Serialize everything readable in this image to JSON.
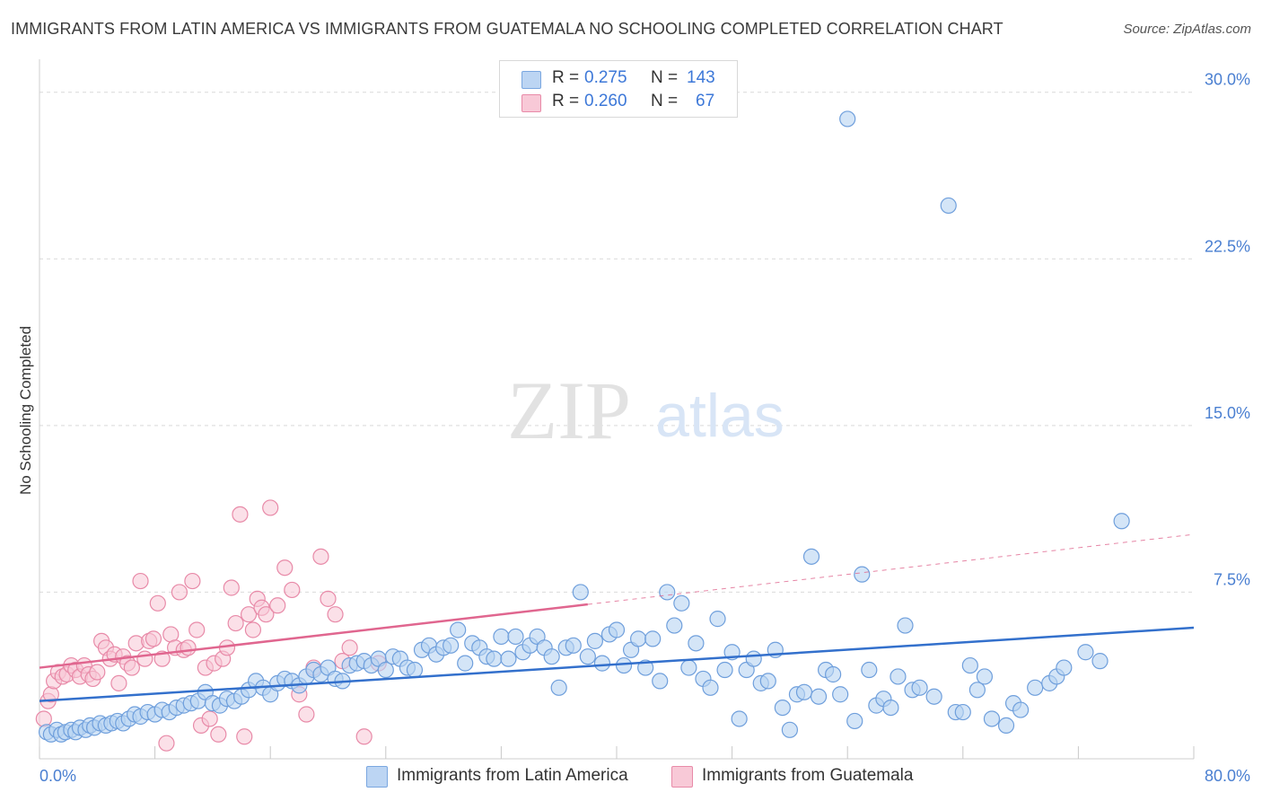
{
  "title": "IMMIGRANTS FROM LATIN AMERICA VS IMMIGRANTS FROM GUATEMALA NO SCHOOLING COMPLETED CORRELATION CHART",
  "source": "Source: ZipAtlas.com",
  "watermark": {
    "zip": "ZIP",
    "atlas": "atlas"
  },
  "legend": {
    "rows": [
      {
        "r_label": "R =",
        "r_value": "0.275",
        "n_label": "N =",
        "n_value": "143",
        "color": "#a9c8f0"
      },
      {
        "r_label": "R =",
        "r_value": "0.260",
        "n_label": "N =",
        "n_value": "67",
        "color": "#f4b6c8"
      }
    ]
  },
  "bottom_legend": [
    {
      "label": "Immigrants from Latin America",
      "color": "#a9c8f0"
    },
    {
      "label": "Immigrants from Guatemala",
      "color": "#f4b6c8"
    }
  ],
  "colors": {
    "blue_fill": "#b8d3f2",
    "blue_stroke": "#6f9fdc",
    "blue_line": "#3370cc",
    "pink_fill": "#f7c6d5",
    "pink_stroke": "#e88aa8",
    "pink_line": "#e0668f",
    "grid": "#d9d9d9",
    "tick_text": "#4a7fd1"
  },
  "chart_data": {
    "type": "scatter",
    "title": "IMMIGRANTS FROM LATIN AMERICA VS IMMIGRANTS FROM GUATEMALA NO SCHOOLING COMPLETED CORRELATION CHART",
    "xlabel": "",
    "ylabel": "No Schooling Completed",
    "xlim": [
      0,
      80
    ],
    "ylim": [
      0,
      31
    ],
    "x_tick_labels": [
      "0.0%",
      "80.0%"
    ],
    "y_ticks": [
      7.5,
      15.0,
      22.5,
      30.0
    ],
    "y_tick_labels": [
      "7.5%",
      "15.0%",
      "22.5%",
      "30.0%"
    ],
    "grid": true,
    "legend_position": "top-center",
    "series": [
      {
        "name": "Immigrants from Latin America",
        "r": 0.275,
        "n": 143,
        "trend": {
          "x0": 0,
          "y0": 2.6,
          "x1": 80,
          "y1": 5.9,
          "dashed_from_x": null
        },
        "points": [
          [
            0.5,
            1.2
          ],
          [
            0.8,
            1.1
          ],
          [
            1.2,
            1.3
          ],
          [
            1.5,
            1.1
          ],
          [
            1.8,
            1.2
          ],
          [
            2.2,
            1.3
          ],
          [
            2.5,
            1.2
          ],
          [
            2.8,
            1.4
          ],
          [
            3.2,
            1.3
          ],
          [
            3.5,
            1.5
          ],
          [
            3.8,
            1.4
          ],
          [
            4.2,
            1.6
          ],
          [
            4.6,
            1.5
          ],
          [
            5.0,
            1.6
          ],
          [
            5.4,
            1.7
          ],
          [
            5.8,
            1.6
          ],
          [
            6.2,
            1.8
          ],
          [
            6.6,
            2.0
          ],
          [
            7.0,
            1.9
          ],
          [
            7.5,
            2.1
          ],
          [
            8.0,
            2.0
          ],
          [
            8.5,
            2.2
          ],
          [
            9.0,
            2.1
          ],
          [
            9.5,
            2.3
          ],
          [
            10.0,
            2.4
          ],
          [
            10.5,
            2.5
          ],
          [
            11.0,
            2.6
          ],
          [
            11.5,
            3.0
          ],
          [
            12.0,
            2.5
          ],
          [
            12.5,
            2.4
          ],
          [
            13.0,
            2.7
          ],
          [
            13.5,
            2.6
          ],
          [
            14.0,
            2.8
          ],
          [
            14.5,
            3.1
          ],
          [
            15.0,
            3.5
          ],
          [
            15.5,
            3.2
          ],
          [
            16.0,
            2.9
          ],
          [
            16.5,
            3.4
          ],
          [
            17.0,
            3.6
          ],
          [
            17.5,
            3.5
          ],
          [
            18.0,
            3.3
          ],
          [
            18.5,
            3.7
          ],
          [
            19.0,
            4.0
          ],
          [
            19.5,
            3.8
          ],
          [
            20.0,
            4.1
          ],
          [
            20.5,
            3.6
          ],
          [
            21.0,
            3.5
          ],
          [
            21.5,
            4.2
          ],
          [
            22.0,
            4.3
          ],
          [
            22.5,
            4.4
          ],
          [
            23.0,
            4.2
          ],
          [
            23.5,
            4.5
          ],
          [
            24.0,
            4.0
          ],
          [
            24.5,
            4.6
          ],
          [
            25.0,
            4.5
          ],
          [
            25.5,
            4.1
          ],
          [
            26.0,
            4.0
          ],
          [
            26.5,
            4.9
          ],
          [
            27.0,
            5.1
          ],
          [
            27.5,
            4.7
          ],
          [
            28.0,
            5.0
          ],
          [
            28.5,
            5.1
          ],
          [
            29.0,
            5.8
          ],
          [
            29.5,
            4.3
          ],
          [
            30.0,
            5.2
          ],
          [
            30.5,
            5.0
          ],
          [
            31.0,
            4.6
          ],
          [
            31.5,
            4.5
          ],
          [
            32.0,
            5.5
          ],
          [
            32.5,
            4.5
          ],
          [
            33.0,
            5.5
          ],
          [
            33.5,
            4.8
          ],
          [
            34.0,
            5.1
          ],
          [
            34.5,
            5.5
          ],
          [
            35.0,
            5.0
          ],
          [
            35.5,
            4.6
          ],
          [
            36.0,
            3.2
          ],
          [
            36.5,
            5.0
          ],
          [
            37.0,
            5.1
          ],
          [
            37.5,
            7.5
          ],
          [
            38.0,
            4.6
          ],
          [
            38.5,
            5.3
          ],
          [
            39.0,
            4.3
          ],
          [
            39.5,
            5.6
          ],
          [
            40.0,
            5.8
          ],
          [
            40.5,
            4.2
          ],
          [
            41.0,
            4.9
          ],
          [
            41.5,
            5.4
          ],
          [
            42.0,
            4.1
          ],
          [
            42.5,
            5.4
          ],
          [
            43.0,
            3.5
          ],
          [
            43.5,
            7.5
          ],
          [
            44.0,
            6.0
          ],
          [
            44.5,
            7.0
          ],
          [
            45.0,
            4.1
          ],
          [
            45.5,
            5.2
          ],
          [
            46.0,
            3.6
          ],
          [
            46.5,
            3.2
          ],
          [
            47.0,
            6.3
          ],
          [
            47.5,
            4.0
          ],
          [
            48.0,
            4.8
          ],
          [
            48.5,
            1.8
          ],
          [
            49.0,
            4.0
          ],
          [
            49.5,
            4.5
          ],
          [
            50.0,
            3.4
          ],
          [
            50.5,
            3.5
          ],
          [
            51.0,
            4.9
          ],
          [
            51.5,
            2.3
          ],
          [
            52.0,
            1.3
          ],
          [
            52.5,
            2.9
          ],
          [
            53.0,
            3.0
          ],
          [
            53.5,
            9.1
          ],
          [
            54.0,
            2.8
          ],
          [
            54.5,
            4.0
          ],
          [
            55.0,
            3.8
          ],
          [
            55.5,
            2.9
          ],
          [
            56.0,
            28.8
          ],
          [
            56.5,
            1.7
          ],
          [
            57.0,
            8.3
          ],
          [
            57.5,
            4.0
          ],
          [
            58.0,
            2.4
          ],
          [
            58.5,
            2.7
          ],
          [
            59.0,
            2.3
          ],
          [
            59.5,
            3.7
          ],
          [
            60.0,
            6.0
          ],
          [
            60.5,
            3.1
          ],
          [
            61.0,
            3.2
          ],
          [
            62.0,
            2.8
          ],
          [
            63.0,
            24.9
          ],
          [
            63.5,
            2.1
          ],
          [
            64.0,
            2.1
          ],
          [
            64.5,
            4.2
          ],
          [
            65.0,
            3.1
          ],
          [
            65.5,
            3.7
          ],
          [
            66.0,
            1.8
          ],
          [
            67.0,
            1.5
          ],
          [
            67.5,
            2.5
          ],
          [
            68.0,
            2.2
          ],
          [
            69.0,
            3.2
          ],
          [
            70.0,
            3.4
          ],
          [
            70.5,
            3.7
          ],
          [
            71.0,
            4.1
          ],
          [
            72.5,
            4.8
          ],
          [
            73.5,
            4.4
          ],
          [
            75.0,
            10.7
          ]
        ]
      },
      {
        "name": "Immigrants from Guatemala",
        "r": 0.26,
        "n": 67,
        "trend": {
          "x0": 0,
          "y0": 4.1,
          "x1": 80,
          "y1": 10.1,
          "dashed_from_x": 38
        },
        "points": [
          [
            0.3,
            1.8
          ],
          [
            0.6,
            2.6
          ],
          [
            0.8,
            2.9
          ],
          [
            1.0,
            3.5
          ],
          [
            1.3,
            3.9
          ],
          [
            1.6,
            3.7
          ],
          [
            1.9,
            3.8
          ],
          [
            2.2,
            4.2
          ],
          [
            2.5,
            4.0
          ],
          [
            2.8,
            3.7
          ],
          [
            3.1,
            4.2
          ],
          [
            3.4,
            3.8
          ],
          [
            3.7,
            3.6
          ],
          [
            4.0,
            3.9
          ],
          [
            4.3,
            5.3
          ],
          [
            4.6,
            5.0
          ],
          [
            4.9,
            4.5
          ],
          [
            5.2,
            4.7
          ],
          [
            5.5,
            3.4
          ],
          [
            5.8,
            4.6
          ],
          [
            6.1,
            4.3
          ],
          [
            6.4,
            4.1
          ],
          [
            6.7,
            5.2
          ],
          [
            7.0,
            8.0
          ],
          [
            7.3,
            4.5
          ],
          [
            7.6,
            5.3
          ],
          [
            7.9,
            5.4
          ],
          [
            8.2,
            7.0
          ],
          [
            8.5,
            4.5
          ],
          [
            8.8,
            0.7
          ],
          [
            9.1,
            5.6
          ],
          [
            9.4,
            5.0
          ],
          [
            9.7,
            7.5
          ],
          [
            10.0,
            4.9
          ],
          [
            10.3,
            5.0
          ],
          [
            10.6,
            8.0
          ],
          [
            10.9,
            5.8
          ],
          [
            11.2,
            1.5
          ],
          [
            11.5,
            4.1
          ],
          [
            11.8,
            1.8
          ],
          [
            12.1,
            4.3
          ],
          [
            12.4,
            1.1
          ],
          [
            12.7,
            4.5
          ],
          [
            13.0,
            5.0
          ],
          [
            13.3,
            7.7
          ],
          [
            13.6,
            6.1
          ],
          [
            13.9,
            11.0
          ],
          [
            14.2,
            1.0
          ],
          [
            14.5,
            6.5
          ],
          [
            14.8,
            5.8
          ],
          [
            15.1,
            7.2
          ],
          [
            15.4,
            6.8
          ],
          [
            15.7,
            6.5
          ],
          [
            16.0,
            11.3
          ],
          [
            16.5,
            6.9
          ],
          [
            17.0,
            8.6
          ],
          [
            17.5,
            7.6
          ],
          [
            18.0,
            2.9
          ],
          [
            18.5,
            2.0
          ],
          [
            19.0,
            4.1
          ],
          [
            19.5,
            9.1
          ],
          [
            20.0,
            7.2
          ],
          [
            20.5,
            6.5
          ],
          [
            21.0,
            4.4
          ],
          [
            21.5,
            5.0
          ],
          [
            22.5,
            1.0
          ],
          [
            23.5,
            4.3
          ]
        ]
      }
    ]
  }
}
